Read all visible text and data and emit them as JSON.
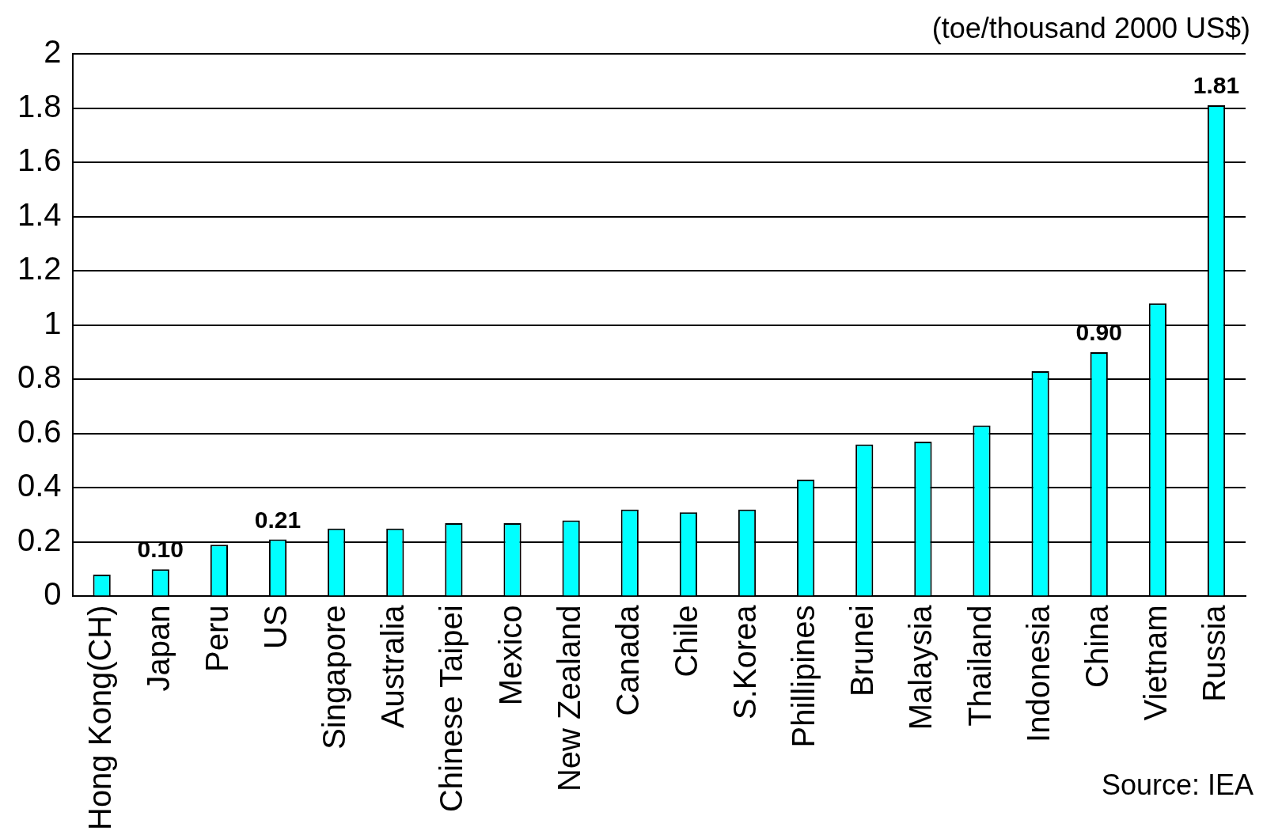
{
  "chart_data": {
    "type": "bar",
    "ylabel": "(toe/thousand 2000 US$)",
    "categories": [
      "Hong Kong(CH)",
      "Japan",
      "Peru",
      "US",
      "Singapore",
      "Australia",
      "Chinese Taipei",
      "Mexico",
      "New Zealand",
      "Canada",
      "Chile",
      "S.Korea",
      "Phillipines",
      "Brunei",
      "Malaysia",
      "Thailand",
      "Indonesia",
      "China",
      "Vietnam",
      "Russia"
    ],
    "values": [
      0.08,
      0.1,
      0.19,
      0.21,
      0.25,
      0.25,
      0.27,
      0.27,
      0.28,
      0.32,
      0.31,
      0.32,
      0.43,
      0.56,
      0.57,
      0.63,
      0.83,
      0.9,
      1.08,
      1.81
    ],
    "value_labels": [
      null,
      "0.10",
      null,
      "0.21",
      null,
      null,
      null,
      null,
      null,
      null,
      null,
      null,
      null,
      null,
      null,
      null,
      null,
      "0.90",
      null,
      "1.81"
    ],
    "color": "#00ffff",
    "ylim": [
      0,
      2
    ],
    "yticks": [
      0,
      {
        "value": 0.2,
        "label": "0.2"
      },
      {
        "value": 0.4,
        "label": "0.4"
      },
      {
        "value": 0.6,
        "label": "0.6"
      },
      {
        "value": 0.8,
        "label": "0.8"
      },
      1,
      {
        "value": 1.2,
        "label": "1.2"
      },
      {
        "value": 1.4,
        "label": "1.4"
      },
      {
        "value": 1.6,
        "label": "1.6"
      },
      {
        "value": 1.8,
        "label": "1.8"
      },
      2
    ],
    "grid": "y",
    "legend": false,
    "annotations": [
      "Source: IEA"
    ]
  }
}
